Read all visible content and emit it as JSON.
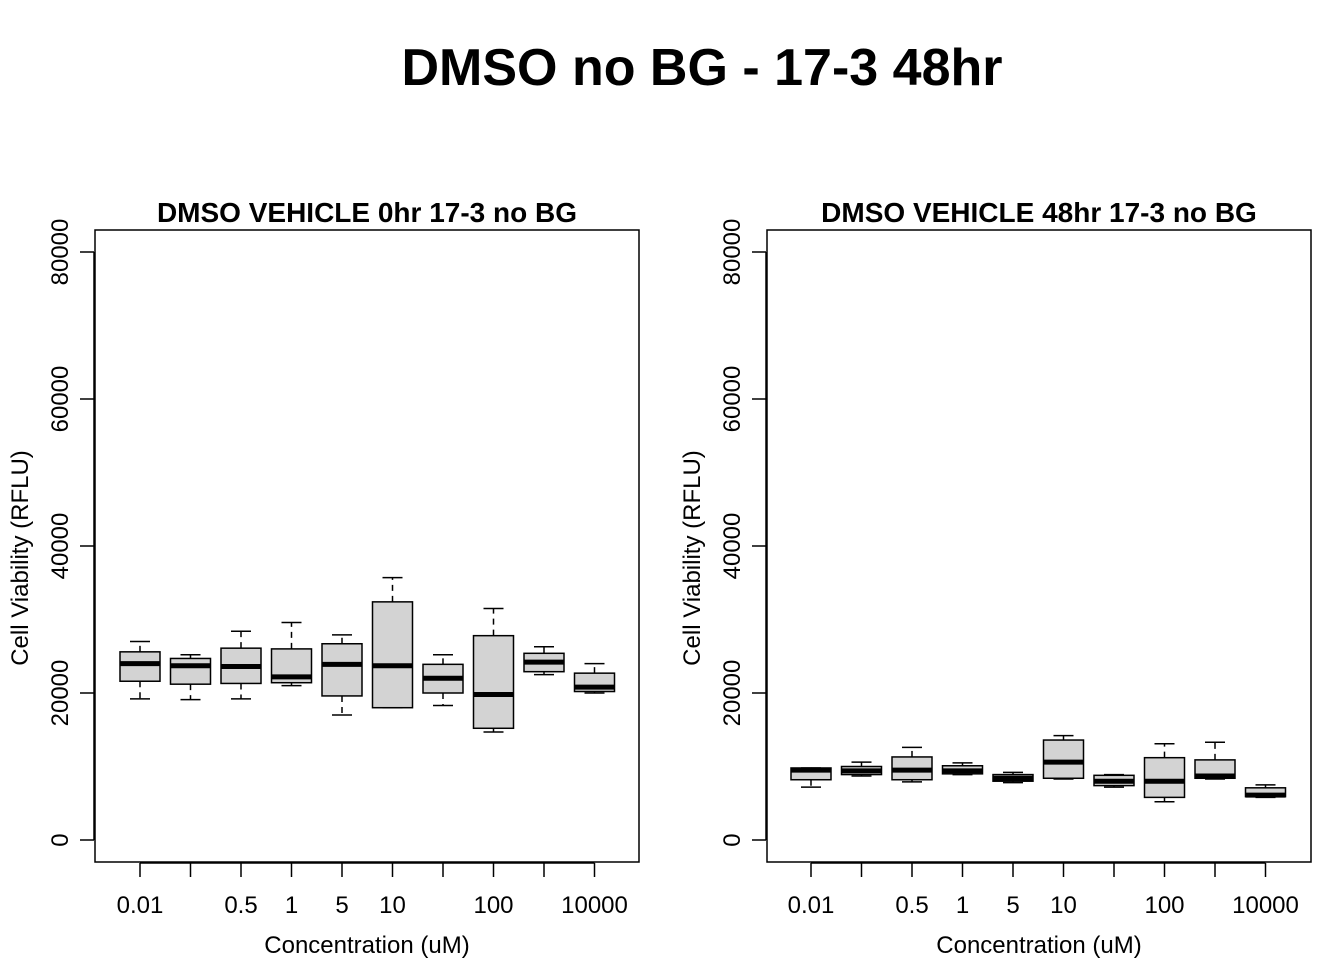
{
  "title": "DMSO no BG - 17-3 48hr",
  "chart_data": [
    {
      "type": "boxplot",
      "title": "DMSO VEHICLE 0hr 17-3 no BG",
      "xlabel": "Concentration (uM)",
      "ylabel": "Cell Viability (RFLU)",
      "ylim": [
        0,
        80000
      ],
      "y_ticks": [
        "0",
        "20000",
        "40000",
        "60000",
        "80000"
      ],
      "x_tick_labels": [
        "0.01",
        "",
        "0.5",
        "1",
        "5",
        "10",
        "",
        "100",
        "",
        "10000"
      ],
      "boxes": [
        {
          "min": 19200,
          "q1": 21600,
          "median": 24000,
          "q3": 25600,
          "max": 27000
        },
        {
          "min": 19100,
          "q1": 21200,
          "median": 23700,
          "q3": 24700,
          "max": 25200
        },
        {
          "min": 19200,
          "q1": 21300,
          "median": 23600,
          "q3": 26100,
          "max": 28400
        },
        {
          "min": 21000,
          "q1": 21400,
          "median": 22200,
          "q3": 26000,
          "max": 29600
        },
        {
          "min": 17000,
          "q1": 19600,
          "median": 23900,
          "q3": 26700,
          "max": 27900
        },
        {
          "min": 18000,
          "q1": 18000,
          "median": 23700,
          "q3": 32400,
          "max": 35700
        },
        {
          "min": 18300,
          "q1": 20000,
          "median": 22000,
          "q3": 23900,
          "max": 25200
        },
        {
          "min": 14700,
          "q1": 15200,
          "median": 19800,
          "q3": 27800,
          "max": 31500
        },
        {
          "min": 22500,
          "q1": 22900,
          "median": 24200,
          "q3": 25400,
          "max": 26300
        },
        {
          "min": 20000,
          "q1": 20200,
          "median": 20800,
          "q3": 22700,
          "max": 24000
        }
      ]
    },
    {
      "type": "boxplot",
      "title": "DMSO VEHICLE 48hr 17-3 no BG",
      "xlabel": "Concentration (uM)",
      "ylabel": "Cell Viability (RFLU)",
      "ylim": [
        0,
        80000
      ],
      "y_ticks": [
        "0",
        "20000",
        "40000",
        "60000",
        "80000"
      ],
      "x_tick_labels": [
        "0.01",
        "",
        "0.5",
        "1",
        "5",
        "10",
        "",
        "100",
        "",
        "10000"
      ],
      "boxes": [
        {
          "min": 7200,
          "q1": 8200,
          "median": 9500,
          "q3": 9800,
          "max": 9800
        },
        {
          "min": 8700,
          "q1": 8900,
          "median": 9400,
          "q3": 10000,
          "max": 10600
        },
        {
          "min": 7900,
          "q1": 8200,
          "median": 9500,
          "q3": 11300,
          "max": 12600
        },
        {
          "min": 8900,
          "q1": 9000,
          "median": 9400,
          "q3": 10100,
          "max": 10500
        },
        {
          "min": 7800,
          "q1": 8000,
          "median": 8400,
          "q3": 8900,
          "max": 9200
        },
        {
          "min": 8300,
          "q1": 8400,
          "median": 10600,
          "q3": 13600,
          "max": 14200
        },
        {
          "min": 7200,
          "q1": 7400,
          "median": 8000,
          "q3": 8800,
          "max": 8900
        },
        {
          "min": 5200,
          "q1": 5800,
          "median": 8000,
          "q3": 11200,
          "max": 13100
        },
        {
          "min": 8300,
          "q1": 8400,
          "median": 8700,
          "q3": 10900,
          "max": 13300
        },
        {
          "min": 5800,
          "q1": 5900,
          "median": 6100,
          "q3": 7100,
          "max": 7500
        }
      ]
    }
  ]
}
